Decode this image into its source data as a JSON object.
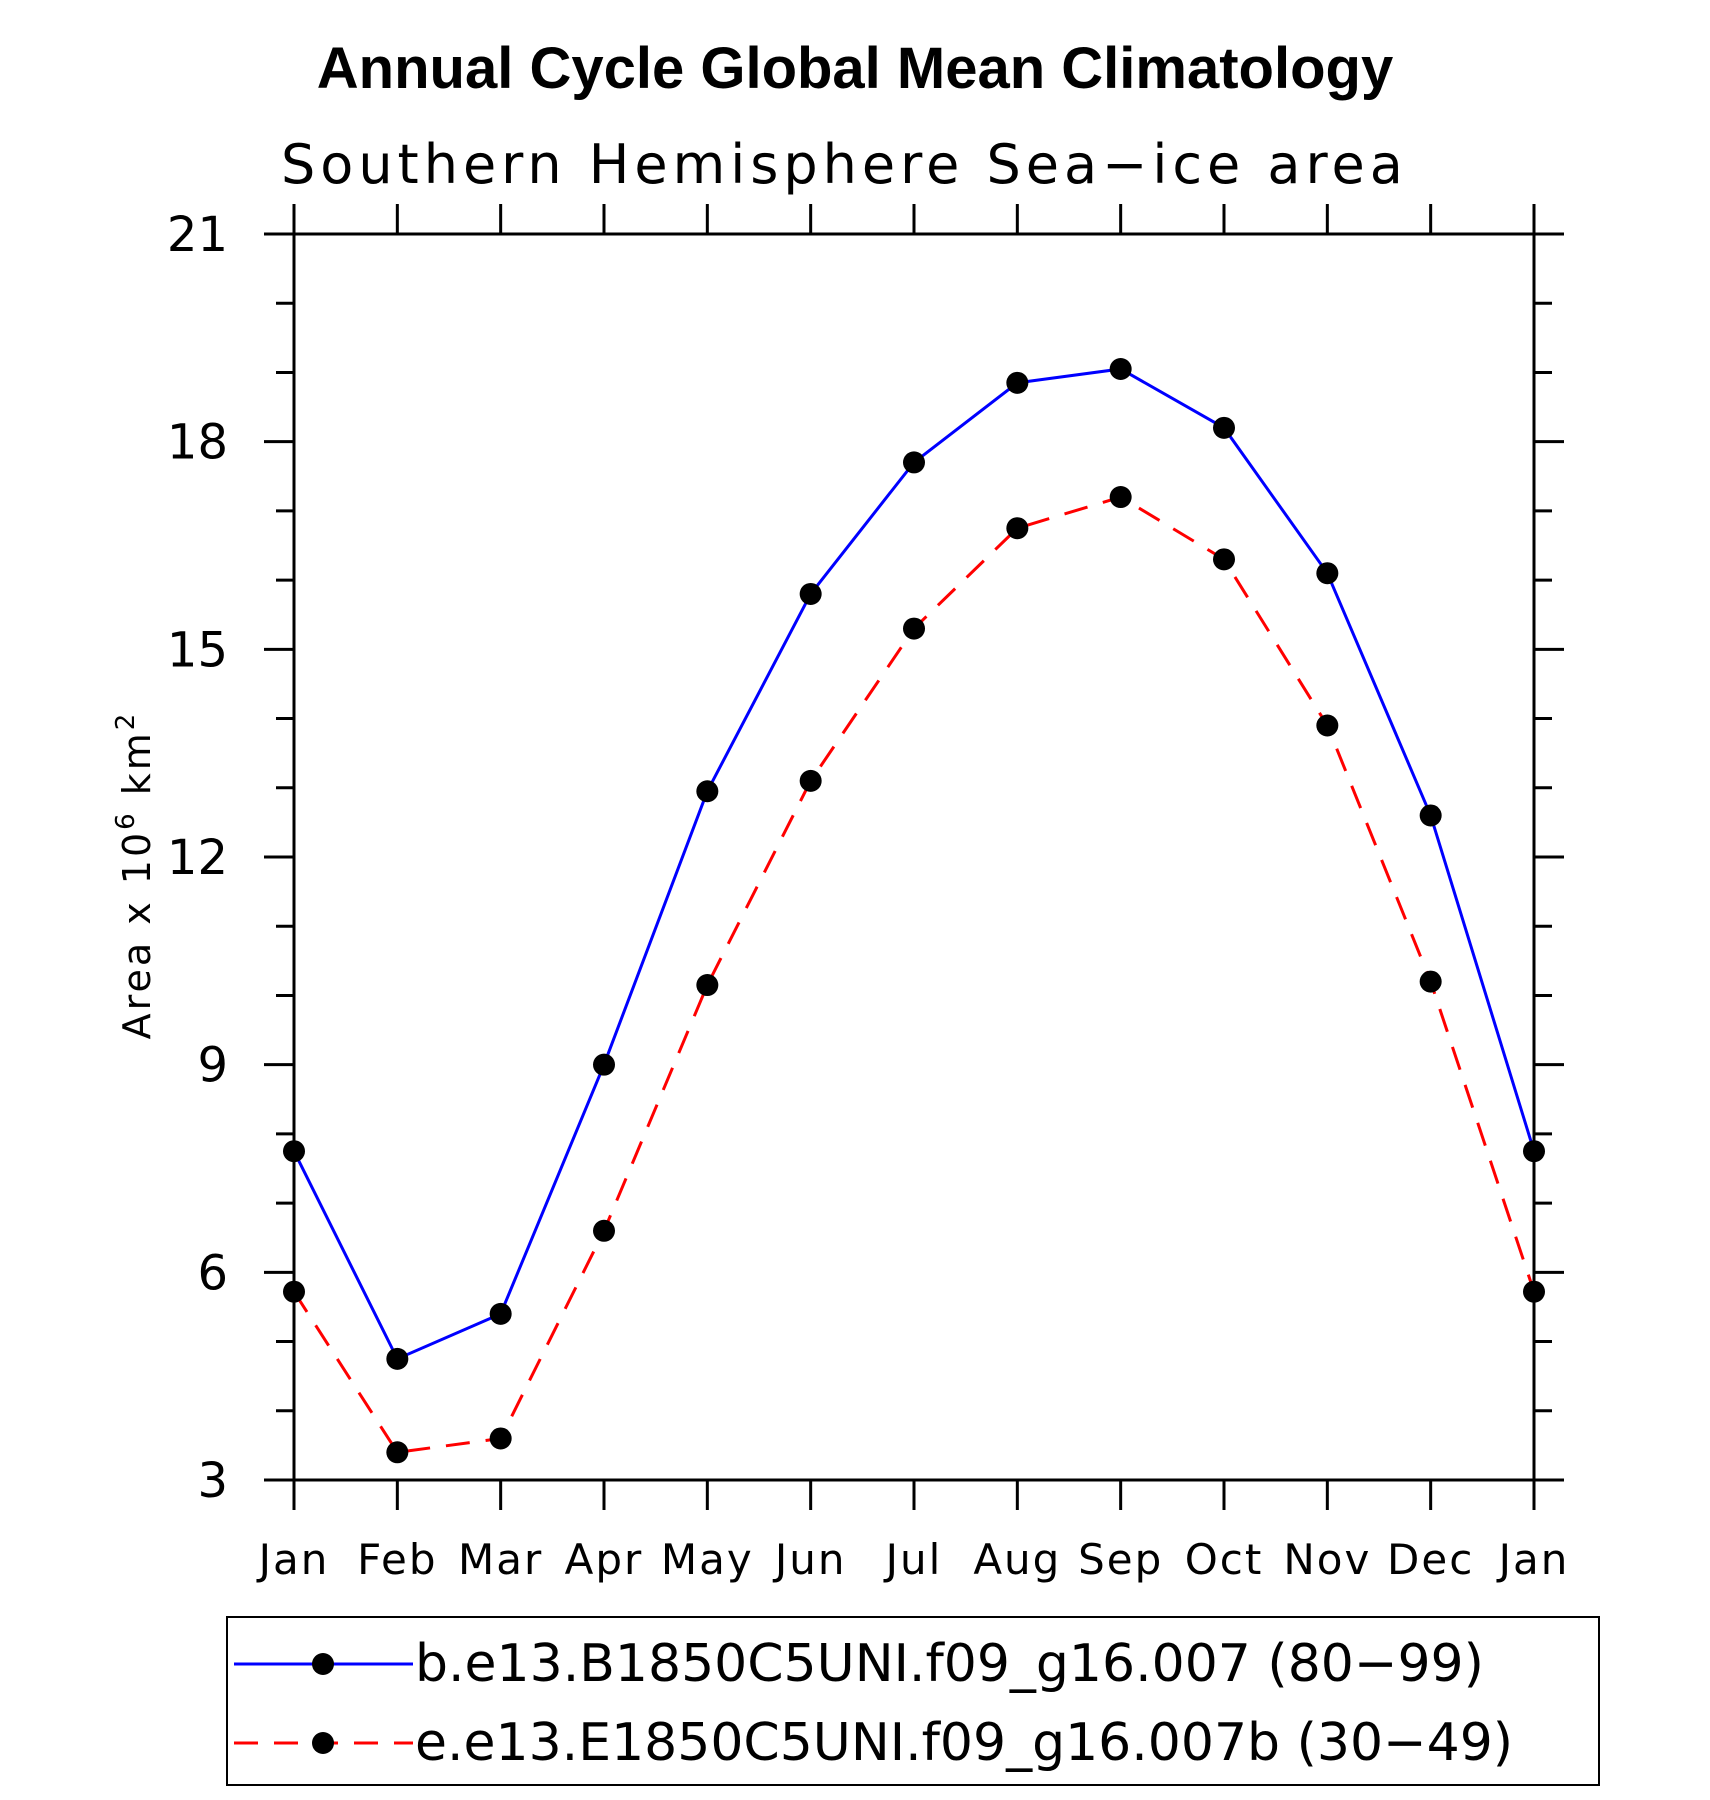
{
  "chart_data": {
    "type": "line",
    "title": "Annual Cycle Global Mean Climatology",
    "subtitle": "Southern Hemisphere Sea−ice area",
    "ylabel": "Area x 10",
    "ylabel_sup": "6",
    "ylabel_unit": "km",
    "ylabel_unit_sup": "2",
    "xlabel": "",
    "categories": [
      "Jan",
      "Feb",
      "Mar",
      "Apr",
      "May",
      "Jun",
      "Jul",
      "Aug",
      "Sep",
      "Oct",
      "Nov",
      "Dec",
      "Jan"
    ],
    "ylim": [
      3,
      21
    ],
    "yticks": [
      "3",
      "6",
      "9",
      "12",
      "15",
      "18",
      "21"
    ],
    "grid": false,
    "legend_position": "bottom",
    "series": [
      {
        "name": "b.e13.B1850C5UNI.f09_g16.007 (80−99)",
        "color": "#0000ff",
        "dash": "solid",
        "values": [
          7.75,
          4.75,
          5.4,
          9.0,
          12.95,
          15.8,
          17.7,
          18.85,
          19.05,
          18.2,
          16.1,
          12.6,
          7.75
        ]
      },
      {
        "name": "e.e13.E1850C5UNI.f09_g16.007b (30−49)",
        "color": "#ff0000",
        "dash": "dashed",
        "values": [
          5.72,
          3.4,
          3.6,
          6.6,
          10.15,
          13.1,
          15.3,
          16.75,
          17.2,
          16.3,
          13.9,
          10.2,
          5.72
        ]
      }
    ]
  }
}
